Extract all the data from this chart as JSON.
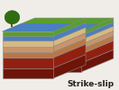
{
  "title": "Strike-slip",
  "title_fontsize": 6.5,
  "title_fontweight": "bold",
  "title_color": "#222222",
  "bg_color": "#f0ede8",
  "layers": {
    "green_top": "#5a9e2f",
    "blue_water": "#4a7fc0",
    "tan_light": "#d8b882",
    "tan_mid": "#c8956a",
    "tan_dark": "#b87848",
    "red_mid": "#922010",
    "red_dark": "#6e1408"
  },
  "tree_trunk": "#7a4a1a",
  "tree_foliage": "#2e6e10",
  "edge_color": "#888888",
  "edge_lw": 0.4
}
